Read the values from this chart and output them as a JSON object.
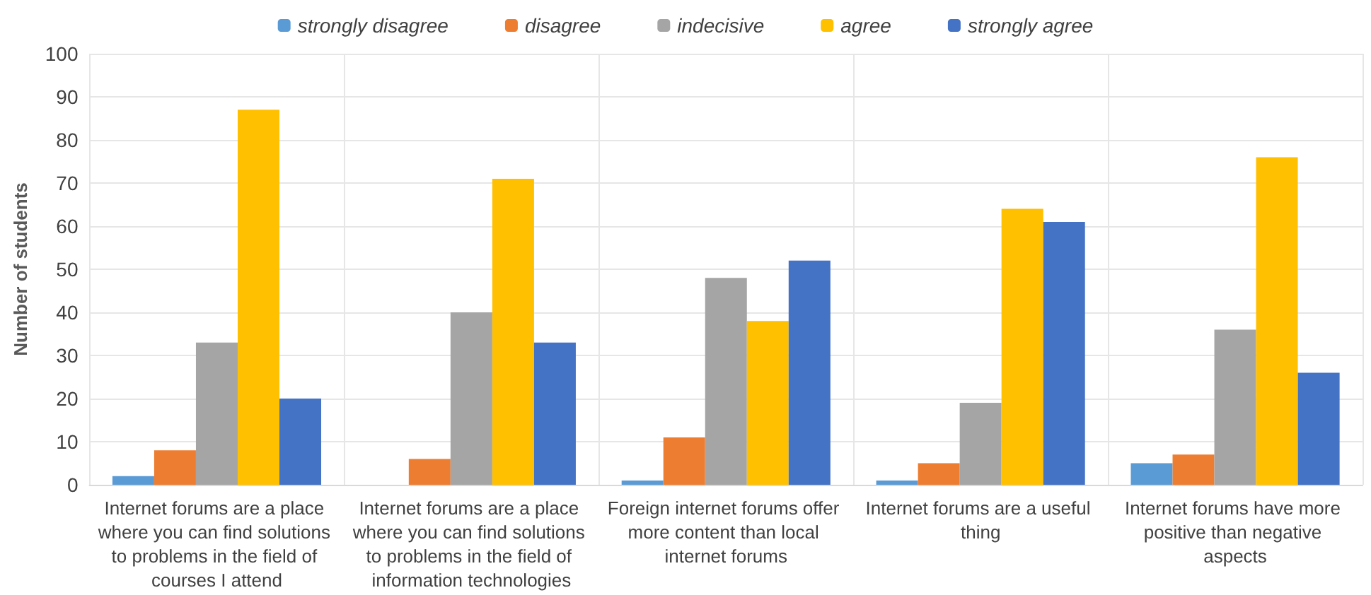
{
  "chart_data": {
    "type": "bar",
    "ylabel": "Number of students",
    "categories": [
      "Internet forums are a place where you can find solutions to problems in the field of courses I attend",
      "Internet forums are a place where you can find solutions to problems in the field of information technologies",
      "Foreign internet forums offer more content than local internet forums",
      "Internet forums are a useful thing",
      "Internet forums have more positive than negative aspects"
    ],
    "series": [
      {
        "name": "strongly disagree",
        "color": "#5b9bd5",
        "values": [
          2,
          0,
          1,
          1,
          5
        ]
      },
      {
        "name": "disagree",
        "color": "#ed7d31",
        "values": [
          8,
          6,
          11,
          5,
          7
        ]
      },
      {
        "name": "indecisive",
        "color": "#a5a5a5",
        "values": [
          33,
          40,
          48,
          19,
          36
        ]
      },
      {
        "name": "agree",
        "color": "#ffc000",
        "values": [
          87,
          71,
          38,
          64,
          76
        ]
      },
      {
        "name": "strongly agree",
        "color": "#4472c4",
        "values": [
          20,
          33,
          52,
          61,
          26
        ]
      }
    ],
    "ylim": [
      0,
      100
    ],
    "yticks": [
      0,
      10,
      20,
      30,
      40,
      50,
      60,
      70,
      80,
      90,
      100
    ],
    "grid": true,
    "legend": "top"
  }
}
